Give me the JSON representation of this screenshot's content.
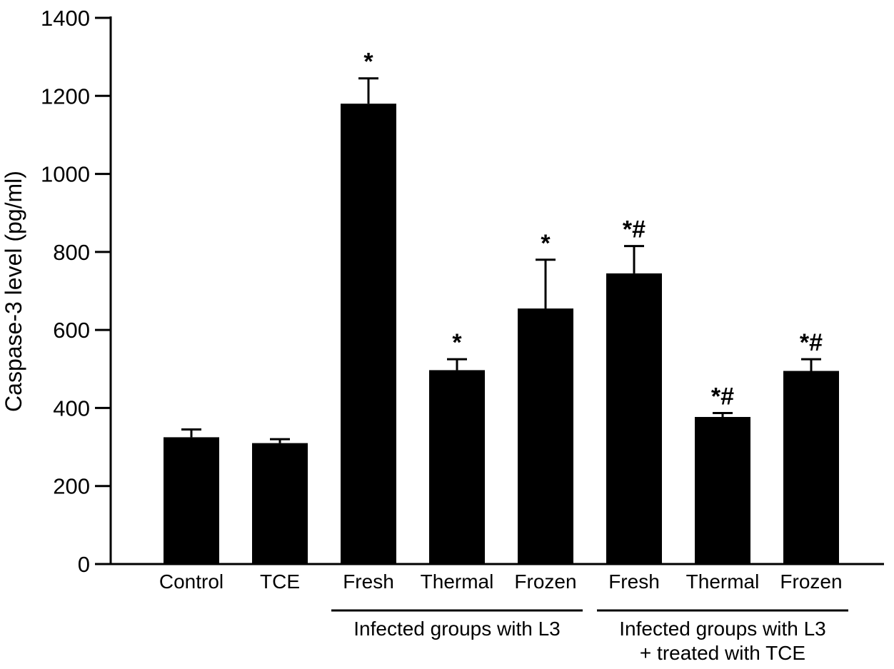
{
  "chart_data": {
    "type": "bar",
    "ylabel": "Caspase-3 level (pg/ml)",
    "xlabel": "",
    "ylim": [
      0,
      1400
    ],
    "yticks": [
      0,
      200,
      400,
      600,
      800,
      1000,
      1200,
      1400
    ],
    "grid": false,
    "legend": null,
    "bar_color": "#000000",
    "axis_color": "#000000",
    "categories": [
      "Control",
      "TCE",
      "Fresh",
      "Thermal",
      "Frozen",
      "Fresh",
      "Thermal",
      "Frozen"
    ],
    "values": [
      325,
      310,
      1180,
      497,
      655,
      745,
      377,
      495
    ],
    "errors": [
      20,
      10,
      65,
      28,
      125,
      70,
      10,
      30
    ],
    "annotations": [
      "",
      "",
      "*",
      "*",
      "*",
      "*#",
      "*#",
      "*#"
    ],
    "groups": [
      {
        "label_lines": [
          "Infected groups with L3"
        ],
        "from_index": 2,
        "to_index": 4
      },
      {
        "label_lines": [
          "Infected groups with L3",
          "+ treated with TCE"
        ],
        "from_index": 5,
        "to_index": 7
      }
    ]
  }
}
